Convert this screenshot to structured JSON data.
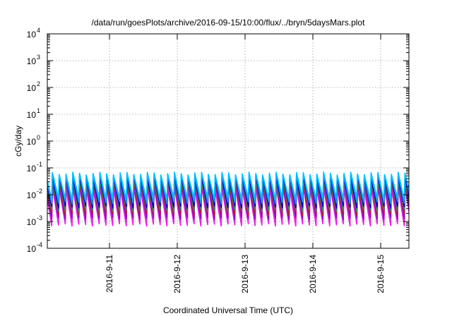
{
  "chart_data": {
    "type": "line",
    "title": "/data/run/goesPlots/archive/2016-09-15/10:00/flux/../bryn/5daysMars.plot",
    "xlabel": "Coordinated Universal Time (UTC)",
    "ylabel": "cGy/day",
    "y_scale": "log",
    "ylim": [
      0.0001,
      10000
    ],
    "y_ticks": [
      {
        "base": "10",
        "exp": "-4",
        "value": 0.0001
      },
      {
        "base": "10",
        "exp": "-3",
        "value": 0.001
      },
      {
        "base": "10",
        "exp": "-2",
        "value": 0.01
      },
      {
        "base": "10",
        "exp": "-1",
        "value": 0.1
      },
      {
        "base": "10",
        "exp": "0",
        "value": 1
      },
      {
        "base": "10",
        "exp": "1",
        "value": 10
      },
      {
        "base": "10",
        "exp": "2",
        "value": 100
      },
      {
        "base": "10",
        "exp": "3",
        "value": 1000
      },
      {
        "base": "10",
        "exp": "4",
        "value": 10000
      }
    ],
    "xlim": [
      "2016-09-10 02:00",
      "2016-09-15 10:00"
    ],
    "x_ticks": [
      "2016-9-11",
      "2016-9-12",
      "2016-9-13",
      "2016-9-14",
      "2016-9-15"
    ],
    "grid": true,
    "legend": "none",
    "pattern": {
      "cycles_per_day": 10,
      "peak_range": [
        0.03,
        0.07
      ],
      "trough_range": [
        0.0007,
        0.008
      ]
    },
    "series": [
      {
        "color": "#ff00ff",
        "peak": 0.018,
        "trough": 0.00075
      },
      {
        "color": "#d633d6",
        "peak": 0.022,
        "trough": 0.0009
      },
      {
        "color": "#9400d3",
        "peak": 0.028,
        "trough": 0.0013
      },
      {
        "color": "#b22222",
        "peak": 0.032,
        "trough": 0.0018
      },
      {
        "color": "#2e8b57",
        "peak": 0.038,
        "trough": 0.0025
      },
      {
        "color": "#0000cd",
        "peak": 0.045,
        "trough": 0.0035
      },
      {
        "color": "#1e90ff",
        "peak": 0.055,
        "trough": 0.005
      },
      {
        "color": "#00bfff",
        "peak": 0.062,
        "trough": 0.007
      }
    ]
  }
}
